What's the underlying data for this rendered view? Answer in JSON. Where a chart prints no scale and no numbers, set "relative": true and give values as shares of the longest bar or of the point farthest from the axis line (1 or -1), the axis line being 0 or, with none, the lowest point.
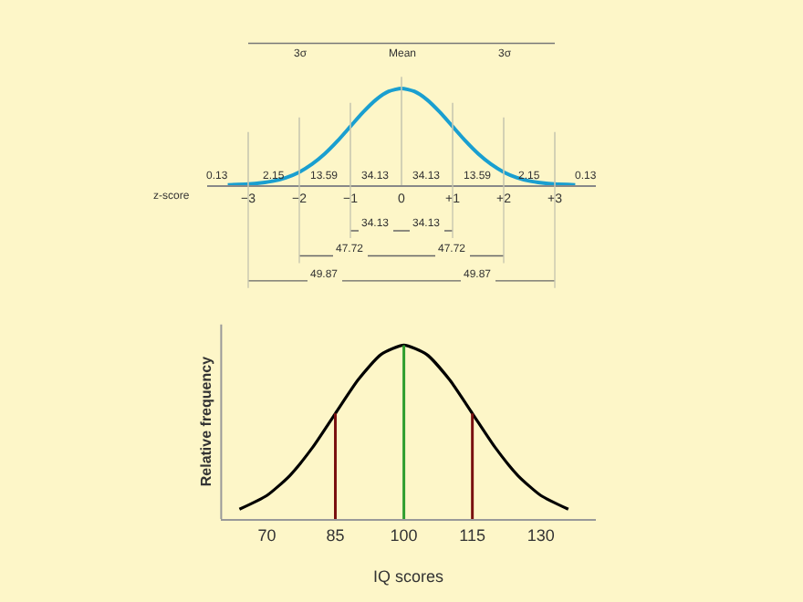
{
  "chart_data": [
    {
      "type": "line",
      "relative": true,
      "x": [
        -3.4,
        -3,
        -2.75,
        -2.5,
        -2.25,
        -2,
        -1.75,
        -1.5,
        -1.25,
        -1,
        -0.75,
        -0.5,
        -0.25,
        0,
        0.25,
        0.5,
        0.75,
        1,
        1.25,
        1.5,
        1.75,
        2,
        2.25,
        2.5,
        2.75,
        3,
        3.4
      ],
      "series": [
        {
          "color": "#1a9fd0",
          "values": [
            0.003,
            0.011,
            0.023,
            0.044,
            0.08,
            0.135,
            0.217,
            0.325,
            0.458,
            0.607,
            0.755,
            0.883,
            0.969,
            1,
            0.969,
            0.883,
            0.755,
            0.607,
            0.458,
            0.325,
            0.217,
            0.135,
            0.08,
            0.044,
            0.023,
            0.011,
            0.003
          ]
        }
      ],
      "xlim": [
        -3.8,
        3.8
      ],
      "xticks": [
        {
          "value": -3,
          "label": "−3"
        },
        {
          "value": -2,
          "label": "−2"
        },
        {
          "value": -1,
          "label": "−1"
        },
        {
          "value": 0,
          "label": "0"
        },
        {
          "value": 1,
          "label": "+1"
        },
        {
          "value": 2,
          "label": "+2"
        },
        {
          "value": 3,
          "label": "+3"
        }
      ],
      "xlabel": "z-score",
      "ref_lines": [
        {
          "axis": "x",
          "value": -3,
          "color": "#c8c8b0"
        },
        {
          "axis": "x",
          "value": -2,
          "color": "#c8c8b0"
        },
        {
          "axis": "x",
          "value": -1,
          "color": "#c8c8b0"
        },
        {
          "axis": "x",
          "value": 0,
          "color": "#c8c8b0"
        },
        {
          "axis": "x",
          "value": 1,
          "color": "#c8c8b0"
        },
        {
          "axis": "x",
          "value": 2,
          "color": "#c8c8b0"
        },
        {
          "axis": "x",
          "value": 3,
          "color": "#c8c8b0"
        }
      ],
      "annotations": [
        "3σ",
        "Mean",
        "3σ",
        "0.13",
        "2.15",
        "13.59",
        "34.13",
        "34.13",
        "13.59",
        "2.15",
        "0.13",
        "34.13",
        "34.13",
        "47.72",
        "47.72",
        "49.87",
        "49.87"
      ]
    },
    {
      "type": "line",
      "relative": true,
      "x": [
        64,
        70,
        75,
        80,
        85,
        90,
        95,
        100,
        105,
        110,
        115,
        120,
        125,
        130,
        136
      ],
      "series": [
        {
          "color": "#000000",
          "values": [
            0.056,
            0.135,
            0.249,
            0.411,
            0.607,
            0.801,
            0.946,
            1,
            0.946,
            0.801,
            0.607,
            0.411,
            0.249,
            0.135,
            0.056
          ]
        }
      ],
      "xlim": [
        60,
        142
      ],
      "xticks": [
        70,
        85,
        100,
        115,
        130
      ],
      "xlabel": "IQ scores",
      "ylabel": "Relative frequency",
      "ref_lines": [
        {
          "axis": "x",
          "value": 85,
          "color": "#7a1010"
        },
        {
          "axis": "x",
          "value": 100,
          "color": "#2e9e2e"
        },
        {
          "axis": "x",
          "value": 115,
          "color": "#7a1010"
        }
      ]
    }
  ]
}
